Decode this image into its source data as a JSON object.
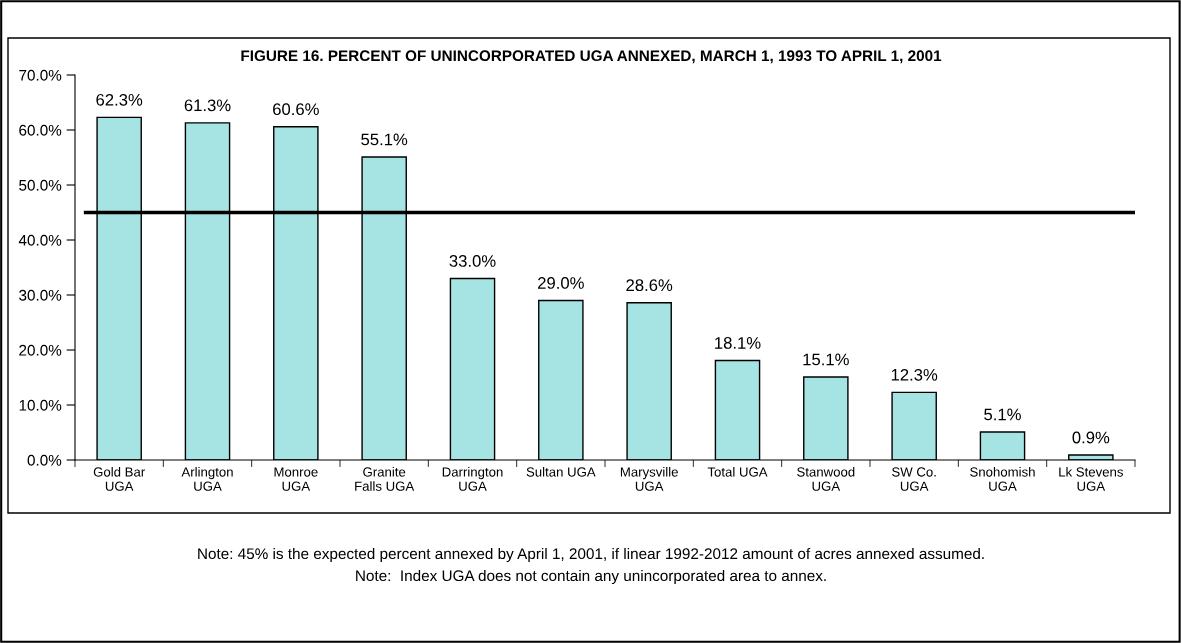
{
  "chart_data": {
    "type": "bar",
    "title": "FIGURE 16. PERCENT OF UNINCORPORATED UGA ANNEXED, MARCH 1, 1993 TO APRIL 1, 2001",
    "categories": [
      "Gold Bar\nUGA",
      "Arlington\nUGA",
      "Monroe\nUGA",
      "Granite\nFalls UGA",
      "Darrington\nUGA",
      "Sultan UGA",
      "Marysville\nUGA",
      "Total UGA",
      "Stanwood\nUGA",
      "SW Co.\nUGA",
      "Snohomish\nUGA",
      "Lk Stevens\nUGA"
    ],
    "values": [
      62.3,
      61.3,
      60.6,
      55.1,
      33.0,
      29.0,
      28.6,
      18.1,
      15.1,
      12.3,
      5.1,
      0.9
    ],
    "value_labels": [
      "62.3%",
      "61.3%",
      "60.6%",
      "55.1%",
      "33.0%",
      "29.0%",
      "28.6%",
      "18.1%",
      "15.1%",
      "12.3%",
      "5.1%",
      "0.9%"
    ],
    "color": "#a6e3e3",
    "ylim": [
      0,
      70
    ],
    "yticks": [
      {
        "value": 0,
        "label": "0.0%"
      },
      {
        "value": 10,
        "label": "10.0%"
      },
      {
        "value": 20,
        "label": "20.0%"
      },
      {
        "value": 30,
        "label": "30.0%"
      },
      {
        "value": 40,
        "label": "40.0%"
      },
      {
        "value": 50,
        "label": "50.0%"
      },
      {
        "value": 60,
        "label": "60.0%"
      },
      {
        "value": 70,
        "label": "70.0%"
      }
    ],
    "ref_lines": [
      {
        "axis": "y",
        "value": 45,
        "color": "#000000",
        "line_style": "solid"
      }
    ],
    "grid": false,
    "legend": false,
    "annotations": [
      "Note: 45% is the expected percent annexed by April 1, 2001, if linear 1992-2012 amount of acres annexed assumed.",
      "Note:  Index UGA does not contain any unincorporated area to annex."
    ]
  }
}
